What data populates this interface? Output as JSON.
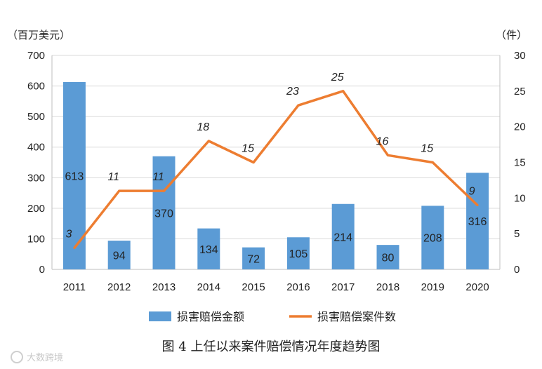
{
  "chart_data": {
    "type": "bar+line",
    "categories": [
      "2011",
      "2012",
      "2013",
      "2014",
      "2015",
      "2016",
      "2017",
      "2018",
      "2019",
      "2020"
    ],
    "series": [
      {
        "name": "损害赔偿金额",
        "type": "bar",
        "axis": "left",
        "color": "#5b9bd5",
        "values": [
          613,
          94,
          370,
          134,
          72,
          105,
          214,
          80,
          208,
          316
        ]
      },
      {
        "name": "损害赔偿案件数",
        "type": "line",
        "axis": "right",
        "color": "#ed7d31",
        "values": [
          3,
          11,
          11,
          18,
          15,
          23,
          25,
          16,
          15,
          9
        ]
      }
    ],
    "y_left": {
      "unit": "（百万美元）",
      "ylim": [
        0,
        700
      ],
      "ticks": [
        0,
        100,
        200,
        300,
        400,
        500,
        600,
        700
      ]
    },
    "y_right": {
      "unit": "（件）",
      "ylim": [
        0,
        30
      ],
      "ticks": [
        0,
        5,
        10,
        15,
        20,
        25,
        30
      ]
    },
    "legend_position": "bottom",
    "grid": true
  },
  "caption": "图 4  上任以来案件赔偿情况年度趋势图",
  "watermark": "大数跨境"
}
